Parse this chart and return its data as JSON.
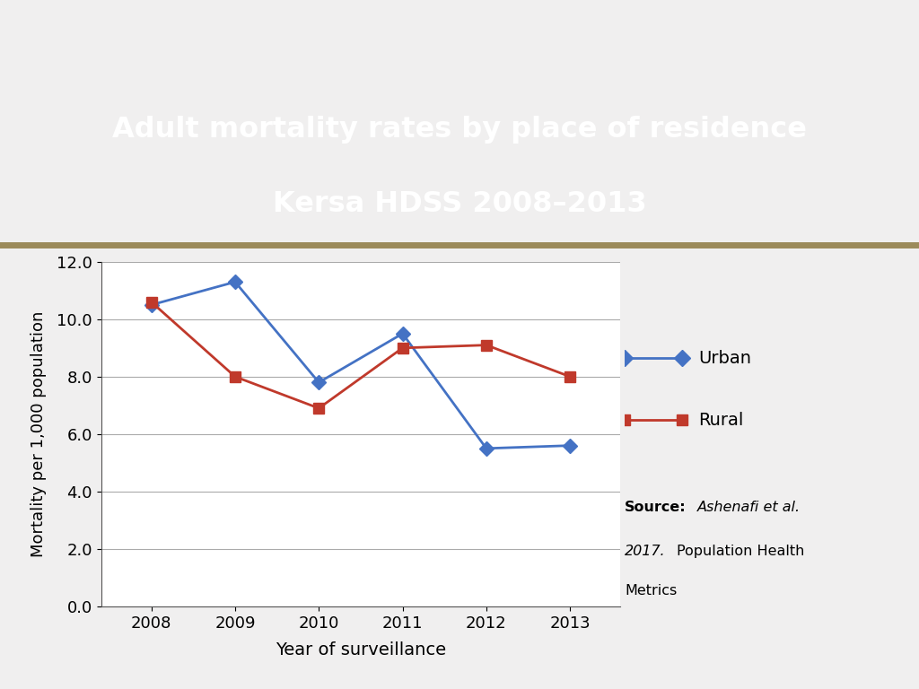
{
  "title_line1": "Adult mortality rates by place of residence",
  "title_line2": "Kersa HDSS 2008–2013",
  "title_bg_color": "#0d1b6e",
  "title_text_color": "#ffffff",
  "header_bar_color": "#9B8A5A",
  "top_strip_color": "#d4d0d0",
  "years": [
    2008,
    2009,
    2010,
    2011,
    2012,
    2013
  ],
  "urban_values": [
    10.5,
    11.3,
    7.8,
    9.5,
    5.5,
    5.6
  ],
  "rural_values": [
    10.6,
    8.0,
    6.9,
    9.0,
    9.1,
    8.0
  ],
  "urban_color": "#4472C4",
  "rural_color": "#C0392B",
  "ylabel": "Mortality per 1,000 population",
  "xlabel": "Year of surveillance",
  "ylim_min": 0.0,
  "ylim_max": 12.0,
  "ytick_step": 2.0,
  "legend_urban": "Urban",
  "legend_rural": "Rural",
  "grid_color": "#aaaaaa",
  "plot_bg_color": "#ffffff",
  "outer_bg_color": "#f0efef"
}
